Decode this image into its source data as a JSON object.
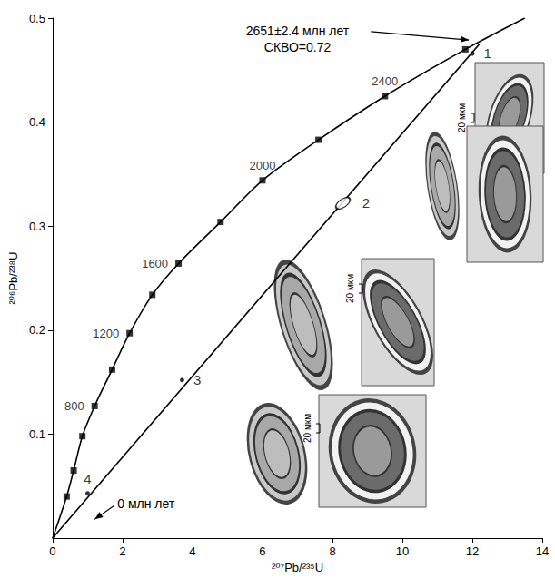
{
  "chart_data": {
    "type": "concordia",
    "xlabel": "²⁰⁷Pb/²³⁵U",
    "ylabel": "²⁰⁶Pb/²³⁸U",
    "xlim": [
      0,
      14
    ],
    "xticks": [
      0,
      2,
      4,
      6,
      8,
      10,
      12,
      14
    ],
    "ylim": [
      0,
      0.5
    ],
    "yticks": [
      0.1,
      0.2,
      0.3,
      0.4,
      0.5
    ],
    "grid": false,
    "series": [
      {
        "type": "line",
        "marker": "none",
        "color": "#000000",
        "x": [
          0,
          0.4,
          0.6,
          0.85,
          1.2,
          1.7,
          2.2,
          2.85,
          3.6,
          4.8,
          6.0,
          7.6,
          9.5,
          11.8,
          13.5
        ],
        "values": [
          0,
          0.04,
          0.065,
          0.098,
          0.127,
          0.162,
          0.197,
          0.234,
          0.264,
          0.304,
          0.344,
          0.383,
          0.425,
          0.47,
          0.5
        ]
      },
      {
        "type": "scatter",
        "marker": "square",
        "color": "#000000",
        "x": [
          0.4,
          0.6,
          0.85,
          1.2,
          1.7,
          2.2,
          2.85,
          3.6,
          4.8,
          6.0,
          7.6,
          9.5,
          11.8
        ],
        "values": [
          0.04,
          0.065,
          0.098,
          0.127,
          0.162,
          0.197,
          0.234,
          0.264,
          0.304,
          0.344,
          0.383,
          0.425,
          0.47
        ],
        "labels": [
          null,
          null,
          null,
          "800",
          null,
          "1200",
          null,
          "1600",
          null,
          "2000",
          null,
          "2400",
          null
        ]
      },
      {
        "type": "line",
        "marker": "none",
        "color": "#000000",
        "x": [
          0,
          12.2
        ],
        "values": [
          0,
          0.475
        ]
      },
      {
        "type": "scatter",
        "marker": "circle",
        "color": "#000000",
        "x": [
          12.0,
          3.7,
          1.0
        ],
        "values": [
          0.466,
          0.152,
          0.043
        ],
        "labels": [
          "1",
          "3",
          "4"
        ]
      },
      {
        "type": "scatter",
        "marker": "ellipse",
        "color": "#000000",
        "x": [
          8.3
        ],
        "values": [
          0.322
        ],
        "labels": [
          "2"
        ]
      }
    ],
    "annotations": [
      "2651±2.4 млн лет",
      "СКВО=0.72",
      "0 млн лет"
    ],
    "scale_labels": [
      "20 мкм",
      "20 мкм",
      "20 мкм"
    ]
  }
}
